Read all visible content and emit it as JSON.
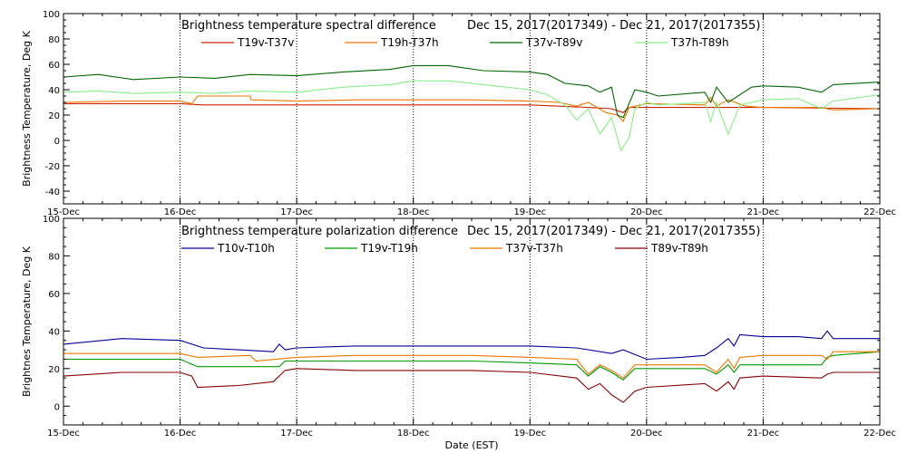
{
  "figure": {
    "xlabel": "Date (EST)"
  },
  "chart_data": [
    {
      "type": "line",
      "title": "Brightness temperature spectral difference",
      "subtitle": "Dec 15, 2017(2017349) - Dec 21, 2017(2017355)",
      "ylabel": "Brightness Temperature, Deg K",
      "xlabel": "",
      "ylim": [
        -50,
        100
      ],
      "yticks": [
        -40,
        -20,
        0,
        20,
        40,
        60,
        80,
        100
      ],
      "xlim": [
        0,
        7
      ],
      "xtick_labels": [
        "15-Dec",
        "16-Dec",
        "17-Dec",
        "18-Dec",
        "19-Dec",
        "20-Dec",
        "21-Dec",
        "22-Dec"
      ],
      "grid": "vertical dotted at day boundaries",
      "legend": "top",
      "series": [
        {
          "name": "T19v-T37v",
          "color": "#cc2200",
          "points": [
            [
              0,
              29
            ],
            [
              0.5,
              29
            ],
            [
              1,
              29
            ],
            [
              1.2,
              28
            ],
            [
              1.5,
              28
            ],
            [
              2,
              28
            ],
            [
              2.5,
              28
            ],
            [
              3,
              28
            ],
            [
              3.5,
              28
            ],
            [
              4,
              28
            ],
            [
              4.25,
              27
            ],
            [
              4.5,
              26
            ],
            [
              4.7,
              25
            ],
            [
              4.8,
              22
            ],
            [
              4.85,
              26
            ],
            [
              5,
              26
            ],
            [
              5.5,
              26
            ],
            [
              6,
              26
            ],
            [
              6.5,
              25.5
            ],
            [
              7,
              25
            ]
          ]
        },
        {
          "name": "T19h-T37h",
          "color": "#ee7700",
          "points": [
            [
              0,
              30
            ],
            [
              0.5,
              31
            ],
            [
              1,
              31
            ],
            [
              1.1,
              29
            ],
            [
              1.15,
              35
            ],
            [
              1.6,
              35
            ],
            [
              1.61,
              32
            ],
            [
              2,
              31
            ],
            [
              2.5,
              32
            ],
            [
              3,
              32
            ],
            [
              3.5,
              32
            ],
            [
              4,
              31
            ],
            [
              4.25,
              30
            ],
            [
              4.4,
              27
            ],
            [
              4.5,
              30
            ],
            [
              4.65,
              22
            ],
            [
              4.75,
              20
            ],
            [
              4.8,
              15
            ],
            [
              4.85,
              26
            ],
            [
              5,
              29
            ],
            [
              5.5,
              28
            ],
            [
              5.55,
              34
            ],
            [
              5.6,
              27
            ],
            [
              5.7,
              32
            ],
            [
              5.85,
              27
            ],
            [
              6,
              26
            ],
            [
              6.5,
              26
            ],
            [
              6.6,
              24
            ],
            [
              7,
              25
            ]
          ]
        },
        {
          "name": "T37v-T89v",
          "color": "#006600",
          "points": [
            [
              0,
              50
            ],
            [
              0.3,
              52
            ],
            [
              0.6,
              48
            ],
            [
              1,
              50
            ],
            [
              1.3,
              49
            ],
            [
              1.6,
              52
            ],
            [
              2,
              51
            ],
            [
              2.4,
              54
            ],
            [
              2.8,
              56
            ],
            [
              3,
              59
            ],
            [
              3.3,
              59
            ],
            [
              3.6,
              55
            ],
            [
              4,
              54
            ],
            [
              4.15,
              52
            ],
            [
              4.3,
              45
            ],
            [
              4.5,
              43
            ],
            [
              4.6,
              38
            ],
            [
              4.7,
              42
            ],
            [
              4.75,
              20
            ],
            [
              4.8,
              18
            ],
            [
              4.9,
              40
            ],
            [
              5,
              38
            ],
            [
              5.1,
              35
            ],
            [
              5.5,
              38
            ],
            [
              5.55,
              30
            ],
            [
              5.6,
              42
            ],
            [
              5.7,
              30
            ],
            [
              5.9,
              42
            ],
            [
              6,
              43
            ],
            [
              6.3,
              42
            ],
            [
              6.5,
              38
            ],
            [
              6.6,
              44
            ],
            [
              7,
              46
            ]
          ]
        },
        {
          "name": "T37h-T89h",
          "color": "#88ee88",
          "points": [
            [
              0,
              38
            ],
            [
              0.3,
              39
            ],
            [
              0.6,
              37
            ],
            [
              1,
              38
            ],
            [
              1.3,
              37
            ],
            [
              1.6,
              39
            ],
            [
              2,
              38
            ],
            [
              2.4,
              42
            ],
            [
              2.8,
              44
            ],
            [
              3,
              47
            ],
            [
              3.3,
              47
            ],
            [
              3.6,
              44
            ],
            [
              4,
              40
            ],
            [
              4.15,
              36
            ],
            [
              4.3,
              28
            ],
            [
              4.4,
              16
            ],
            [
              4.5,
              25
            ],
            [
              4.6,
              5
            ],
            [
              4.7,
              18
            ],
            [
              4.78,
              -8
            ],
            [
              4.85,
              2
            ],
            [
              4.9,
              25
            ],
            [
              5,
              30
            ],
            [
              5.1,
              28
            ],
            [
              5.5,
              30
            ],
            [
              5.55,
              15
            ],
            [
              5.6,
              30
            ],
            [
              5.7,
              5
            ],
            [
              5.8,
              28
            ],
            [
              6,
              32
            ],
            [
              6.3,
              33
            ],
            [
              6.5,
              25
            ],
            [
              6.6,
              31
            ],
            [
              7,
              36
            ]
          ]
        }
      ]
    },
    {
      "type": "line",
      "title": "Brightness temperature polarization difference",
      "subtitle": "Dec 15, 2017(2017349) - Dec 21, 2017(2017355)",
      "ylabel": "Brightnes Temperature, Deg K",
      "xlabel": "",
      "ylim": [
        -10,
        100
      ],
      "yticks": [
        0,
        20,
        40,
        60,
        80,
        100
      ],
      "xlim": [
        0,
        7
      ],
      "xtick_labels": [
        "15-Dec",
        "16-Dec",
        "17-Dec",
        "18-Dec",
        "19-Dec",
        "20-Dec",
        "21-Dec",
        "22-Dec"
      ],
      "grid": "vertical dotted at day boundaries",
      "legend": "top",
      "series": [
        {
          "name": "T10v-T10h",
          "color": "#000099",
          "points": [
            [
              0,
              33
            ],
            [
              0.5,
              36
            ],
            [
              1,
              35
            ],
            [
              1.2,
              31
            ],
            [
              1.5,
              30
            ],
            [
              1.8,
              29
            ],
            [
              1.85,
              33
            ],
            [
              1.9,
              30
            ],
            [
              2,
              31
            ],
            [
              2.5,
              32
            ],
            [
              3,
              32
            ],
            [
              3.5,
              32
            ],
            [
              4,
              32
            ],
            [
              4.4,
              31
            ],
            [
              4.7,
              28
            ],
            [
              4.8,
              30
            ],
            [
              5,
              25
            ],
            [
              5.3,
              26
            ],
            [
              5.5,
              27
            ],
            [
              5.6,
              31
            ],
            [
              5.7,
              36
            ],
            [
              5.75,
              32
            ],
            [
              5.8,
              38
            ],
            [
              6,
              37
            ],
            [
              6.3,
              37
            ],
            [
              6.5,
              36
            ],
            [
              6.55,
              40
            ],
            [
              6.6,
              36
            ],
            [
              7,
              36
            ]
          ]
        },
        {
          "name": "T19v-T19h",
          "color": "#009900",
          "points": [
            [
              0,
              25
            ],
            [
              0.5,
              25
            ],
            [
              1,
              25
            ],
            [
              1.15,
              21
            ],
            [
              1.5,
              21
            ],
            [
              1.85,
              21
            ],
            [
              1.9,
              24
            ],
            [
              2,
              24
            ],
            [
              2.5,
              24
            ],
            [
              3,
              24
            ],
            [
              3.5,
              24
            ],
            [
              4,
              23
            ],
            [
              4.4,
              22
            ],
            [
              4.5,
              16
            ],
            [
              4.6,
              21
            ],
            [
              4.7,
              18
            ],
            [
              4.8,
              14
            ],
            [
              4.9,
              20
            ],
            [
              5,
              20
            ],
            [
              5.5,
              20
            ],
            [
              5.6,
              17
            ],
            [
              5.7,
              22
            ],
            [
              5.75,
              18
            ],
            [
              5.8,
              22
            ],
            [
              6,
              22
            ],
            [
              6.5,
              22
            ],
            [
              6.55,
              26
            ],
            [
              6.6,
              27
            ],
            [
              7,
              29
            ]
          ]
        },
        {
          "name": "T37v-T37h",
          "color": "#ee7700",
          "points": [
            [
              0,
              28
            ],
            [
              0.5,
              28
            ],
            [
              1,
              28
            ],
            [
              1.15,
              26
            ],
            [
              1.6,
              27
            ],
            [
              1.65,
              24
            ],
            [
              2,
              26
            ],
            [
              2.5,
              27
            ],
            [
              3,
              27
            ],
            [
              3.5,
              27
            ],
            [
              4,
              26
            ],
            [
              4.4,
              25
            ],
            [
              4.5,
              17
            ],
            [
              4.6,
              22
            ],
            [
              4.7,
              19
            ],
            [
              4.8,
              15
            ],
            [
              4.9,
              22
            ],
            [
              5,
              22
            ],
            [
              5.5,
              22
            ],
            [
              5.6,
              18
            ],
            [
              5.7,
              25
            ],
            [
              5.75,
              20
            ],
            [
              5.8,
              26
            ],
            [
              6,
              27
            ],
            [
              6.5,
              27
            ],
            [
              6.55,
              25
            ],
            [
              6.6,
              29
            ],
            [
              7,
              29
            ]
          ]
        },
        {
          "name": "T89v-T89h",
          "color": "#880000",
          "points": [
            [
              0,
              16
            ],
            [
              0.5,
              18
            ],
            [
              1,
              18
            ],
            [
              1.1,
              16
            ],
            [
              1.15,
              10
            ],
            [
              1.5,
              11
            ],
            [
              1.8,
              13
            ],
            [
              1.9,
              19
            ],
            [
              2,
              20
            ],
            [
              2.5,
              19
            ],
            [
              3,
              19
            ],
            [
              3.5,
              19
            ],
            [
              4,
              18
            ],
            [
              4.4,
              15
            ],
            [
              4.5,
              9
            ],
            [
              4.6,
              12
            ],
            [
              4.7,
              6
            ],
            [
              4.8,
              2
            ],
            [
              4.9,
              8
            ],
            [
              5,
              10
            ],
            [
              5.5,
              12
            ],
            [
              5.6,
              8
            ],
            [
              5.7,
              13
            ],
            [
              5.75,
              9
            ],
            [
              5.8,
              15
            ],
            [
              6,
              16
            ],
            [
              6.5,
              15
            ],
            [
              6.55,
              17
            ],
            [
              6.6,
              18
            ],
            [
              7,
              18
            ]
          ]
        }
      ]
    }
  ]
}
